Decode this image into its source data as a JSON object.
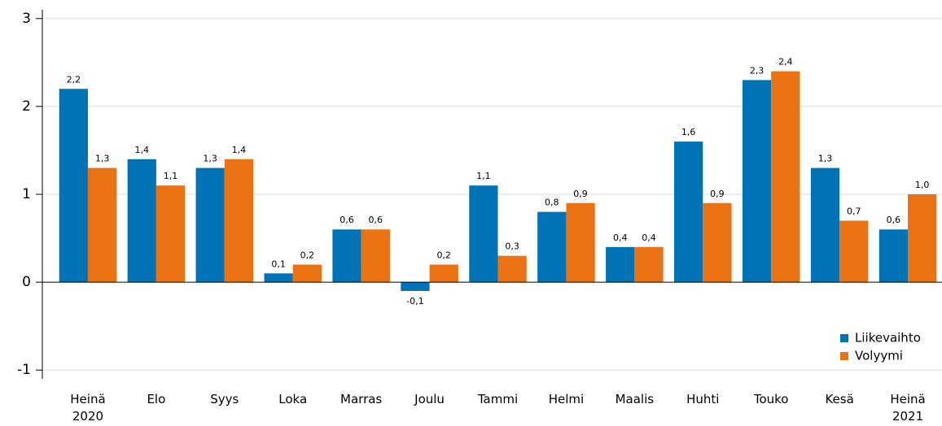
{
  "chart_data": {
    "type": "bar",
    "categories": [
      "Heinä 2020",
      "Elo",
      "Syys",
      "Loka",
      "Marras",
      "Joulu",
      "Tammi",
      "Helmi",
      "Maalis",
      "Huhti",
      "Touko",
      "Kesä",
      "Heinä 2021"
    ],
    "series": [
      {
        "name": "Liikevaihto",
        "color": "#0072b6",
        "values": [
          2.2,
          1.4,
          1.3,
          0.1,
          0.6,
          -0.1,
          1.1,
          0.8,
          0.4,
          1.6,
          2.3,
          1.3,
          0.6
        ],
        "value_labels": [
          "2,2",
          "1,4",
          "1,3",
          "0,1",
          "0,6",
          "-0,1",
          "1,1",
          "0,8",
          "0,4",
          "1,6",
          "2,3",
          "1,3",
          "0,6"
        ]
      },
      {
        "name": "Volyymi",
        "color": "#eb7212",
        "values": [
          1.3,
          1.1,
          1.4,
          0.2,
          0.6,
          0.2,
          0.3,
          0.9,
          0.4,
          0.9,
          2.4,
          0.7,
          1.0
        ],
        "value_labels": [
          "1,3",
          "1,1",
          "1,4",
          "0,2",
          "0,6",
          "0,2",
          "0,3",
          "0,9",
          "0,4",
          "0,9",
          "2,4",
          "0,7",
          "1,0"
        ]
      }
    ],
    "ylim": [
      -1.1,
      3.1
    ],
    "yticks": [
      -1,
      0,
      1,
      2,
      3
    ],
    "grid": true,
    "legend": "bottom-right"
  }
}
